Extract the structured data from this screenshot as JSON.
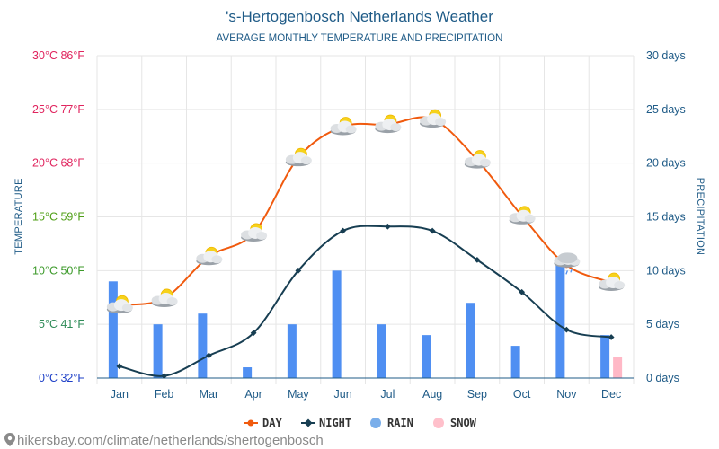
{
  "page": {
    "title": "'s-Hertogenbosch Netherlands Weather",
    "subtitle": "AVERAGE MONTHLY TEMPERATURE AND PRECIPITATION",
    "footer": "hikersbay.com/climate/netherlands/shertogenbosch"
  },
  "chart_data": {
    "type": "line",
    "title": "'s-Hertogenbosch Netherlands Weather",
    "subtitle": "AVERAGE MONTHLY TEMPERATURE AND PRECIPITATION",
    "categories": [
      "Jan",
      "Feb",
      "Mar",
      "Apr",
      "May",
      "Jun",
      "Jul",
      "Aug",
      "Sep",
      "Oct",
      "Nov",
      "Dec"
    ],
    "y_left": {
      "label": "TEMPERATURE",
      "range": [
        0,
        30
      ],
      "ticks": [
        {
          "value": 0,
          "label": "0°C 32°F",
          "color": "#1d3fc7"
        },
        {
          "value": 5,
          "label": "5°C 41°F",
          "color": "#2e8b57"
        },
        {
          "value": 10,
          "label": "10°C 50°F",
          "color": "#3c9a2a"
        },
        {
          "value": 15,
          "label": "15°C 59°F",
          "color": "#4f9f16"
        },
        {
          "value": 20,
          "label": "20°C 68°F",
          "color": "#e0245e"
        },
        {
          "value": 25,
          "label": "25°C 77°F",
          "color": "#e0245e"
        },
        {
          "value": 30,
          "label": "30°C 86°F",
          "color": "#e0245e"
        }
      ]
    },
    "y_right": {
      "label": "PRECIPITATION",
      "range": [
        0,
        30
      ],
      "ticks": [
        {
          "value": 0,
          "label": "0 days"
        },
        {
          "value": 5,
          "label": "5 days"
        },
        {
          "value": 10,
          "label": "10 days"
        },
        {
          "value": 15,
          "label": "15 days"
        },
        {
          "value": 20,
          "label": "20 days"
        },
        {
          "value": 25,
          "label": "25 days"
        },
        {
          "value": 30,
          "label": "30 days"
        }
      ]
    },
    "series": [
      {
        "name": "DAY",
        "kind": "line",
        "axis": "left",
        "color": "#f05a0e",
        "values": [
          6.8,
          7.4,
          11.3,
          13.5,
          20.5,
          23.4,
          23.6,
          24.1,
          20.3,
          15.1,
          10.5,
          8.9
        ]
      },
      {
        "name": "NIGHT",
        "kind": "line",
        "axis": "left",
        "color": "#173e52",
        "values": [
          1.1,
          0.2,
          2.1,
          4.2,
          10.0,
          13.7,
          14.1,
          13.7,
          11.0,
          8.0,
          4.5,
          3.8
        ]
      },
      {
        "name": "RAIN",
        "kind": "bar",
        "axis": "right",
        "color": "#4f8ff2",
        "values": [
          9,
          5,
          6,
          1,
          5,
          10,
          5,
          4,
          7,
          3,
          11,
          4
        ]
      },
      {
        "name": "SNOW",
        "kind": "bar",
        "axis": "right",
        "color": "#ffb8c6",
        "values": [
          0,
          0,
          0,
          0,
          0,
          0,
          0,
          0,
          0,
          0,
          0,
          2
        ]
      }
    ],
    "weather_icons": [
      "sun-cloud-icon",
      "sun-cloud-icon",
      "sun-cloud-icon",
      "sun-cloud-icon",
      "sun-cloud-icon",
      "sun-cloud-icon",
      "sun-cloud-icon",
      "sun-cloud-icon",
      "sun-cloud-icon",
      "sun-cloud-icon",
      "rain-cloud-icon",
      "sun-cloud-icon"
    ],
    "grid": true,
    "legend_position": "bottom-center"
  },
  "legend": [
    {
      "label": "DAY",
      "marker": "line-dot",
      "color": "#f05a0e"
    },
    {
      "label": "NIGHT",
      "marker": "line-diamond",
      "color": "#173e52"
    },
    {
      "label": "RAIN",
      "marker": "circle",
      "color": "#7aaeea"
    },
    {
      "label": "SNOW",
      "marker": "circle",
      "color": "#ffc0cb"
    }
  ],
  "colors": {
    "title": "#1f5b87",
    "axis": "#1f5b87",
    "grid": "#e6e6e6"
  }
}
